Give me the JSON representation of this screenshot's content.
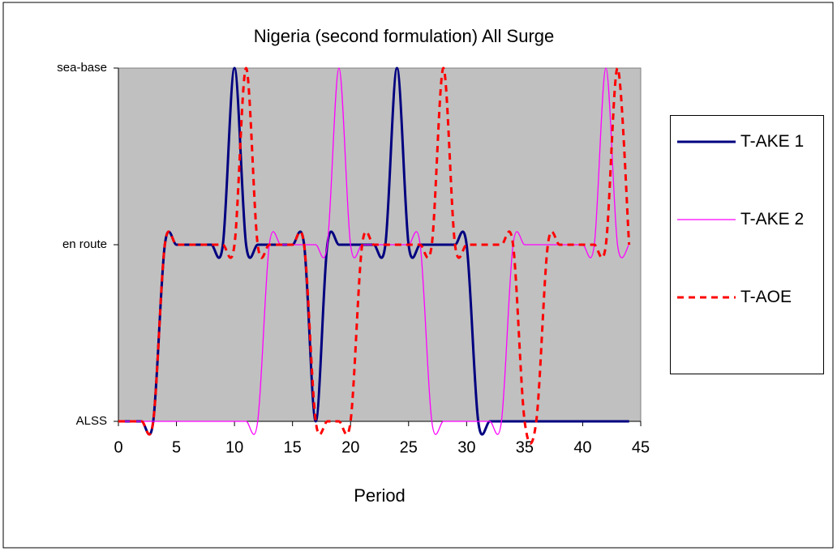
{
  "chart_data": {
    "type": "line",
    "title": "Nigeria (second formulation) All Surge",
    "x_label": "Period",
    "x": [
      0,
      1,
      2,
      3,
      4,
      5,
      6,
      7,
      8,
      9,
      10,
      11,
      12,
      13,
      14,
      15,
      16,
      17,
      18,
      19,
      20,
      21,
      22,
      23,
      24,
      25,
      26,
      27,
      28,
      29,
      30,
      31,
      32,
      33,
      34,
      35,
      36,
      37,
      38,
      39,
      40,
      41,
      42,
      43,
      44
    ],
    "xlim": [
      0,
      45
    ],
    "xticks": [
      0,
      5,
      10,
      15,
      20,
      25,
      30,
      35,
      40,
      45
    ],
    "ylim": [
      0,
      2
    ],
    "yticks": [
      {
        "value": 0,
        "label": "ALSS"
      },
      {
        "value": 1,
        "label": "en route"
      },
      {
        "value": 2,
        "label": "sea-base"
      }
    ],
    "plot_background": "#c0c0c0",
    "series": [
      {
        "name": "T-AKE 1",
        "color": "#000080",
        "dash": false,
        "width": 3,
        "values": [
          0,
          0,
          0,
          0,
          1,
          1,
          1,
          1,
          1,
          1,
          2,
          1,
          1,
          1,
          1,
          1,
          1,
          0,
          1,
          1,
          1,
          1,
          1,
          1,
          2,
          1,
          1,
          1,
          1,
          1,
          1,
          0,
          0,
          0,
          0,
          0,
          0,
          0,
          0,
          0,
          0,
          0,
          0,
          0,
          0
        ]
      },
      {
        "name": "T-AKE 2",
        "color": "#ff00ff",
        "dash": false,
        "width": 1.3,
        "values": [
          0,
          0,
          0,
          0,
          0,
          0,
          0,
          0,
          0,
          0,
          0,
          0,
          0,
          1,
          1,
          1,
          1,
          1,
          1,
          2,
          1,
          1,
          1,
          1,
          1,
          1,
          1,
          0,
          0,
          0,
          0,
          0,
          0,
          0,
          1,
          1,
          1,
          1,
          1,
          1,
          1,
          1,
          2,
          1,
          1
        ]
      },
      {
        "name": "T-AOE",
        "color": "#ff0000",
        "dash": true,
        "width": 3,
        "values": [
          0,
          0,
          0,
          0,
          1,
          1,
          1,
          1,
          1,
          1,
          1,
          2,
          1,
          1,
          1,
          1,
          1,
          0,
          0,
          0,
          0,
          1,
          1,
          1,
          1,
          1,
          1,
          1,
          2,
          1,
          1,
          1,
          1,
          1,
          1,
          0,
          0,
          1,
          1,
          1,
          1,
          1,
          1,
          2,
          1
        ]
      }
    ]
  }
}
